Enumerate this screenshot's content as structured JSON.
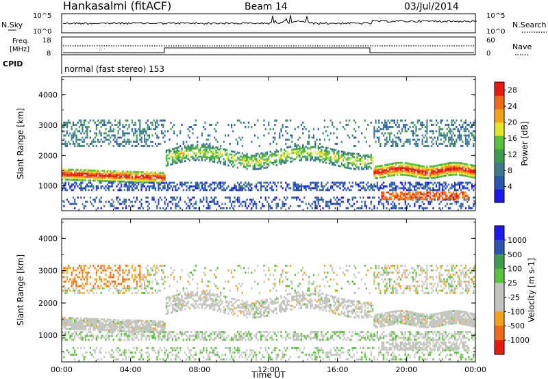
{
  "header": {
    "station": "Hankasalmi (fitACF)",
    "beam": "Beam 14",
    "date": "03/Jul/2014"
  },
  "noise_panel": {
    "left_label": "N.Sky",
    "right_label": "N.Search",
    "left_ticks": [
      "10^5",
      "10^0"
    ],
    "right_ticks": [
      "10^5",
      "10^0"
    ]
  },
  "freq_panel": {
    "left_label_1": "Freq.",
    "left_label_2": "[MHz]",
    "left_ticks": [
      "18",
      "8"
    ],
    "right_label": "Nave",
    "right_ticks": [
      "60",
      "0"
    ]
  },
  "cpid": {
    "label": "CPID",
    "program": "normal (fast stereo) 153"
  },
  "colors": {
    "power": [
      "#1a1af0",
      "#2a55b0",
      "#3c7b8a",
      "#3f9b4e",
      "#58c23a",
      "#e4e42c",
      "#f4a21c",
      "#f26a18",
      "#e61c10"
    ],
    "velocity_neg": [
      "#e61c10",
      "#f26a18",
      "#f4a21c"
    ],
    "velocity_gray": "#c4c4be",
    "velocity_pos": [
      "#58c23a",
      "#3f9b4e",
      "#2a55b0",
      "#1a1af0"
    ]
  },
  "chart_data": [
    {
      "type": "heatmap",
      "name": "power",
      "ylabel": "Slant Range [km]",
      "xlabel": "Time UT",
      "xlim": [
        "00:00",
        "00:00"
      ],
      "ylim": [
        180,
        4600
      ],
      "x_ticks": [
        "00:00",
        "04:00",
        "08:00",
        "12:00",
        "16:00",
        "20:00",
        "00:00"
      ],
      "y_ticks": [
        1000,
        2000,
        3000,
        4000
      ],
      "colorbar": {
        "label": "Power [dB]",
        "ticks": [
          4,
          8,
          12,
          16,
          20,
          24,
          28
        ],
        "range": [
          0,
          30
        ]
      }
    },
    {
      "type": "heatmap",
      "name": "velocity",
      "ylabel": "Slant Range [km]",
      "xlabel": "Time UT",
      "xlim": [
        "00:00",
        "00:00"
      ],
      "ylim": [
        180,
        4600
      ],
      "x_ticks": [
        "00:00",
        "04:00",
        "08:00",
        "12:00",
        "16:00",
        "20:00",
        "00:00"
      ],
      "y_ticks": [
        1000,
        2000,
        3000,
        4000
      ],
      "colorbar": {
        "label": "Velocity [m s-1]",
        "ticks": [
          "1000",
          "500",
          "100",
          "25",
          "-25",
          "-100",
          "-500",
          "-1000"
        ]
      }
    }
  ]
}
